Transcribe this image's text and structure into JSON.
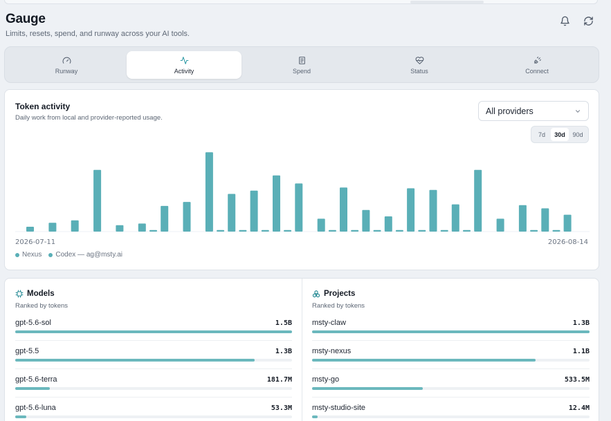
{
  "app": {
    "title": "Gauge",
    "subtitle": "Limits, resets, spend, and runway across your AI tools."
  },
  "header": {
    "icons": [
      "bell-icon",
      "refresh-icon"
    ]
  },
  "tabs": [
    {
      "label": "Runway",
      "icon": "gauge-icon",
      "active": false
    },
    {
      "label": "Activity",
      "icon": "pulse-icon",
      "active": true
    },
    {
      "label": "Spend",
      "icon": "receipt-icon",
      "active": false
    },
    {
      "label": "Status",
      "icon": "heart-pulse-icon",
      "active": false
    },
    {
      "label": "Connect",
      "icon": "plug-icon",
      "active": false
    }
  ],
  "activity": {
    "title": "Token activity",
    "subtitle": "Daily work from local and provider-reported usage.",
    "provider_select": "All providers",
    "ranges": [
      {
        "label": "7d",
        "active": false
      },
      {
        "label": "30d",
        "active": true
      },
      {
        "label": "90d",
        "active": false
      }
    ],
    "start_date": "2026-07-11",
    "end_date": "2026-08-14",
    "legend": [
      "Nexus",
      "Codex — ag@msty.ai"
    ],
    "colors": {
      "bar": "#5aafb7"
    }
  },
  "chart_data": {
    "type": "bar",
    "x_start": "2026-07-11",
    "x_end": "2026-08-14",
    "ylim": [
      0,
      100
    ],
    "grid": false,
    "legend_position": "bottom-left",
    "series": [
      {
        "name": "Nexus",
        "values": [
          6,
          11,
          14,
          77,
          8,
          10,
          32,
          37,
          99,
          47,
          51,
          70,
          60,
          16,
          55,
          27,
          19,
          54,
          52,
          34,
          77,
          16,
          33,
          29,
          21
        ]
      },
      {
        "name": "Codex — ag@msty.ai",
        "values": [
          0,
          0,
          0,
          0,
          0,
          2,
          0,
          0,
          2,
          2,
          2,
          2,
          0,
          2,
          2,
          2,
          2,
          2,
          2,
          2,
          0,
          0,
          2,
          2,
          0
        ]
      }
    ]
  },
  "models": {
    "title": "Models",
    "subtitle": "Ranked by tokens",
    "items": [
      {
        "name": "gpt-5.6-sol",
        "value": "1.5B",
        "share": 1.0
      },
      {
        "name": "gpt-5.5",
        "value": "1.3B",
        "share": 0.866
      },
      {
        "name": "gpt-5.6-terra",
        "value": "181.7M",
        "share": 0.125
      },
      {
        "name": "gpt-5.6-luna",
        "value": "53.3M",
        "share": 0.04
      }
    ]
  },
  "projects": {
    "title": "Projects",
    "subtitle": "Ranked by tokens",
    "items": [
      {
        "name": "msty-claw",
        "value": "1.3B",
        "share": 1.0
      },
      {
        "name": "msty-nexus",
        "value": "1.1B",
        "share": 0.806
      },
      {
        "name": "msty-go",
        "value": "533.5M",
        "share": 0.4
      },
      {
        "name": "msty-studio-site",
        "value": "12.4M",
        "share": 0.02
      }
    ]
  }
}
